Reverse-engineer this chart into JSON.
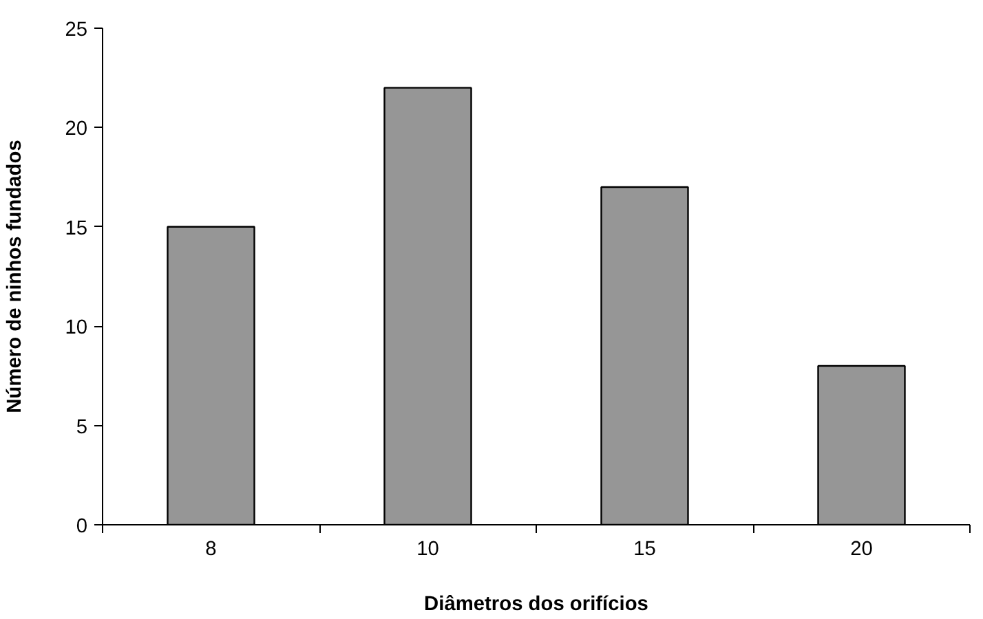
{
  "chart_data": {
    "type": "bar",
    "xlabel": "Diâmetros dos orifícios",
    "ylabel": "Número de ninhos fundados",
    "categories": [
      "8",
      "10",
      "15",
      "20"
    ],
    "values": [
      15,
      22,
      17,
      8
    ],
    "color": "#969696",
    "ylim": [
      0,
      25
    ],
    "yticks": [
      0,
      5,
      10,
      15,
      20,
      25
    ],
    "grid": false
  }
}
